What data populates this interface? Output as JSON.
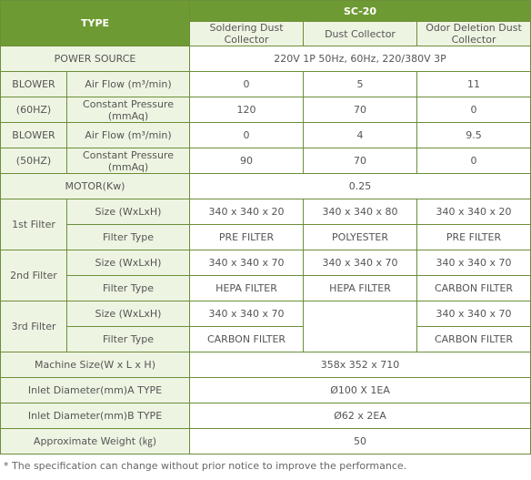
{
  "header": {
    "type_label": "TYPE",
    "model": "SC-20",
    "col1": "Soldering Dust Collector",
    "col2": "Dust Collector",
    "col3": "Odor Deletion Dust Collector"
  },
  "power_source": {
    "label": "POWER SOURCE",
    "value": "220V 1P 50Hz, 60Hz, 220/380V 3P"
  },
  "blower_60": {
    "label_top": "BLOWER",
    "label_bottom": "(60HZ)",
    "airflow_label": "Air Flow (m³/min)",
    "airflow": [
      "0",
      "5",
      "11"
    ],
    "pressure_label": "Constant Pressure (mmAq)",
    "pressure": [
      "120",
      "70",
      "0"
    ]
  },
  "blower_50": {
    "label_top": "BLOWER",
    "label_bottom": "(50HZ)",
    "airflow_label": "Air Flow (m³/min)",
    "airflow": [
      "0",
      "4",
      "9.5"
    ],
    "pressure_label": "Constant Pressure (mmAq)",
    "pressure": [
      "90",
      "70",
      "0"
    ]
  },
  "motor": {
    "label": "MOTOR(Kw)",
    "value": "0.25"
  },
  "filter1": {
    "label": "1st Filter",
    "size_label": "Size (WxLxH)",
    "size": [
      "340 x 340 x 20",
      "340 x 340 x 80",
      "340 x 340 x 20"
    ],
    "type_label": "Filter Type",
    "type": [
      "PRE FILTER",
      "POLYESTER",
      "PRE FILTER"
    ]
  },
  "filter2": {
    "label": "2nd Filter",
    "size_label": "Size (WxLxH)",
    "size": [
      "340 x 340 x 70",
      "340 x 340 x 70",
      "340 x 340 x 70"
    ],
    "type_label": "Filter Type",
    "type": [
      "HEPA FILTER",
      "HEPA FILTER",
      "CARBON FILTER"
    ]
  },
  "filter3": {
    "label": "3rd Filter",
    "size_label": "Size (WxLxH)",
    "size": [
      "340 x 340 x 70",
      "",
      "340 x 340 x 70"
    ],
    "type_label": "Filter Type",
    "type": [
      "CARBON FILTER",
      "",
      "CARBON FILTER"
    ]
  },
  "machine_size": {
    "label": "Machine Size(W x L x H)",
    "value": "358x 352 x 710"
  },
  "inlet_a": {
    "label": "Inlet Diameter(mm)A TYPE",
    "value": "Ø100 X 1EA"
  },
  "inlet_b": {
    "label": "Inlet Diameter(mm)B TYPE",
    "value": "Ø62 x 2EA"
  },
  "weight": {
    "label": "Approximate Weight (㎏)",
    "value": "50"
  },
  "footnote": "* The specification can change without prior notice to improve the performance.",
  "colors": {
    "header_green": "#6e9a33",
    "label_bg": "#eef4e2",
    "border": "#6c8e3a"
  }
}
